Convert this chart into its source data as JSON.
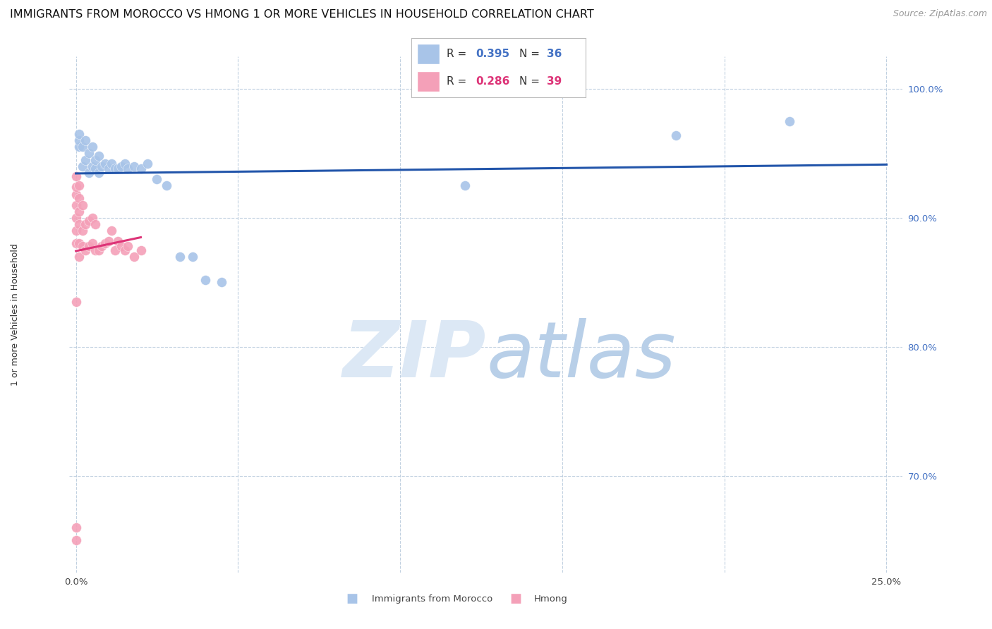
{
  "title": "IMMIGRANTS FROM MOROCCO VS HMONG 1 OR MORE VEHICLES IN HOUSEHOLD CORRELATION CHART",
  "source": "Source: ZipAtlas.com",
  "ylabel": "1 or more Vehicles in Household",
  "ylim": [
    0.625,
    1.025
  ],
  "xlim": [
    -0.002,
    0.255
  ],
  "yticks_shown": [
    0.7,
    0.8,
    0.9,
    1.0
  ],
  "ytick_labels_shown": [
    "70.0%",
    "80.0%",
    "90.0%",
    "100.0%"
  ],
  "xticks": [
    0.0,
    0.05,
    0.1,
    0.15,
    0.2,
    0.25
  ],
  "xtick_labels": [
    "0.0%",
    "",
    "",
    "",
    "",
    "25.0%"
  ],
  "morocco_R": 0.395,
  "morocco_N": 36,
  "hmong_R": 0.286,
  "hmong_N": 39,
  "morocco_color": "#a8c4e8",
  "hmong_color": "#f4a0b8",
  "morocco_line_color": "#2255aa",
  "hmong_line_color": "#dd3377",
  "background_color": "#ffffff",
  "grid_color": "#c0d0e0",
  "morocco_x": [
    0.001,
    0.001,
    0.001,
    0.002,
    0.002,
    0.003,
    0.003,
    0.004,
    0.004,
    0.005,
    0.005,
    0.006,
    0.006,
    0.007,
    0.007,
    0.008,
    0.009,
    0.01,
    0.011,
    0.012,
    0.013,
    0.014,
    0.015,
    0.016,
    0.018,
    0.02,
    0.022,
    0.025,
    0.028,
    0.032,
    0.036,
    0.04,
    0.045,
    0.12,
    0.185,
    0.22
  ],
  "morocco_y": [
    0.955,
    0.96,
    0.965,
    0.94,
    0.955,
    0.945,
    0.96,
    0.935,
    0.95,
    0.94,
    0.955,
    0.938,
    0.945,
    0.935,
    0.948,
    0.94,
    0.942,
    0.938,
    0.942,
    0.938,
    0.938,
    0.94,
    0.942,
    0.938,
    0.94,
    0.938,
    0.942,
    0.93,
    0.925,
    0.87,
    0.87,
    0.852,
    0.85,
    0.925,
    0.964,
    0.975
  ],
  "hmong_x": [
    0.0,
    0.0,
    0.0,
    0.0,
    0.0,
    0.0,
    0.0,
    0.0,
    0.0,
    0.0,
    0.001,
    0.001,
    0.001,
    0.001,
    0.001,
    0.001,
    0.002,
    0.002,
    0.002,
    0.003,
    0.003,
    0.004,
    0.004,
    0.005,
    0.005,
    0.006,
    0.006,
    0.007,
    0.008,
    0.009,
    0.01,
    0.011,
    0.012,
    0.013,
    0.014,
    0.015,
    0.016,
    0.018,
    0.02
  ],
  "hmong_y": [
    0.65,
    0.66,
    0.835,
    0.88,
    0.89,
    0.9,
    0.91,
    0.918,
    0.924,
    0.932,
    0.87,
    0.88,
    0.895,
    0.905,
    0.915,
    0.925,
    0.878,
    0.89,
    0.91,
    0.875,
    0.895,
    0.878,
    0.898,
    0.88,
    0.9,
    0.875,
    0.895,
    0.875,
    0.878,
    0.88,
    0.882,
    0.89,
    0.875,
    0.882,
    0.878,
    0.875,
    0.878,
    0.87,
    0.875
  ],
  "title_fontsize": 11.5,
  "axis_label_fontsize": 9,
  "tick_fontsize": 9.5,
  "source_fontsize": 9
}
